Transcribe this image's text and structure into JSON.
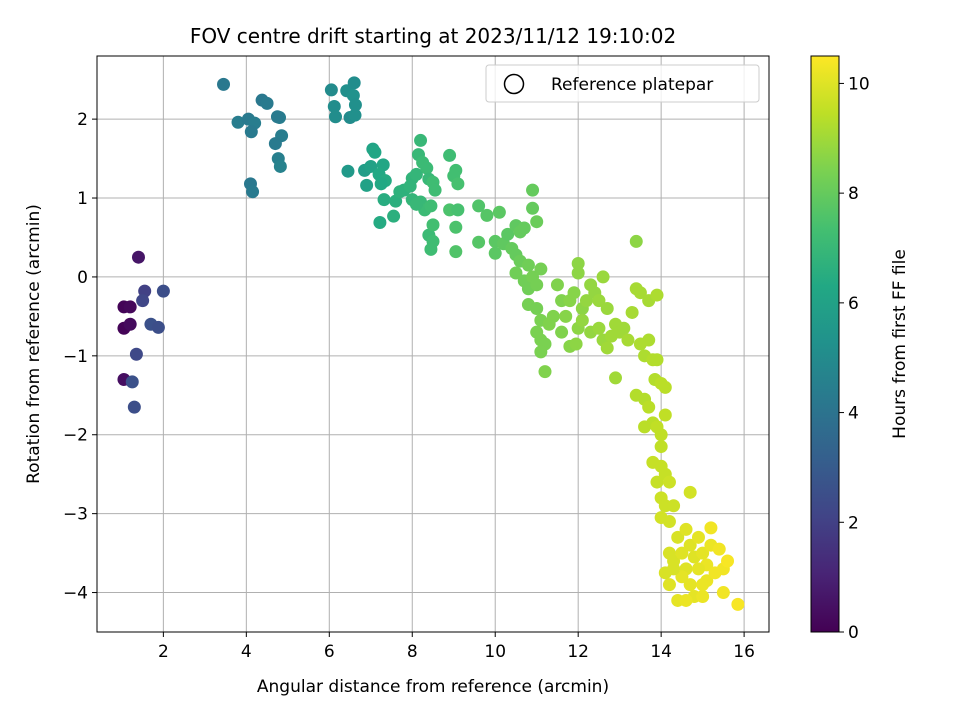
{
  "chart_data": {
    "type": "scatter",
    "title": "FOV centre drift starting at 2023/11/12 19:10:02",
    "xlabel": "Angular distance from reference (arcmin)",
    "ylabel": "Rotation from reference (arcmin)",
    "xlim": [
      0.4,
      16.6
    ],
    "ylim": [
      -4.5,
      2.8
    ],
    "xticks": [
      2,
      4,
      6,
      8,
      10,
      12,
      14,
      16
    ],
    "yticks": [
      -4,
      -3,
      -2,
      -1,
      0,
      1,
      2
    ],
    "grid": true,
    "legend": {
      "position": "upper right",
      "entries": [
        "Reference platepar"
      ]
    },
    "colorbar": {
      "label": "Hours from first FF file",
      "range": [
        0,
        10.5
      ],
      "ticks": [
        0,
        2,
        4,
        6,
        8,
        10
      ],
      "colormap": "viridis"
    },
    "points": [
      [
        1.05,
        -0.38,
        0.1
      ],
      [
        1.2,
        -0.38,
        0.2
      ],
      [
        1.05,
        -0.65,
        0.1
      ],
      [
        1.2,
        -0.6,
        0.3
      ],
      [
        1.05,
        -1.3,
        0.4
      ],
      [
        1.4,
        0.25,
        0.6
      ],
      [
        1.55,
        -0.18,
        2.0
      ],
      [
        1.5,
        -0.3,
        2.2
      ],
      [
        2.0,
        -0.18,
        2.5
      ],
      [
        1.7,
        -0.6,
        2.6
      ],
      [
        1.88,
        -0.64,
        2.5
      ],
      [
        1.35,
        -0.98,
        2.3
      ],
      [
        1.25,
        -1.33,
        2.6
      ],
      [
        1.3,
        -1.65,
        2.5
      ],
      [
        3.45,
        2.44,
        4.2
      ],
      [
        3.8,
        1.96,
        4.4
      ],
      [
        4.05,
        2.0,
        4.3
      ],
      [
        4.2,
        1.95,
        4.4
      ],
      [
        4.12,
        1.84,
        4.3
      ],
      [
        4.38,
        2.24,
        4.2
      ],
      [
        4.5,
        2.2,
        4.3
      ],
      [
        4.1,
        1.18,
        4.2
      ],
      [
        4.15,
        1.08,
        4.3
      ],
      [
        4.8,
        2.02,
        4.4
      ],
      [
        4.75,
        2.03,
        4.3
      ],
      [
        4.85,
        1.79,
        4.4
      ],
      [
        4.7,
        1.69,
        4.3
      ],
      [
        4.77,
        1.5,
        4.5
      ],
      [
        4.82,
        1.4,
        4.6
      ],
      [
        6.05,
        2.37,
        5.0
      ],
      [
        6.12,
        2.16,
        5.1
      ],
      [
        6.15,
        2.03,
        5.1
      ],
      [
        6.42,
        2.36,
        5.2
      ],
      [
        6.58,
        2.3,
        5.3
      ],
      [
        6.6,
        2.46,
        5.1
      ],
      [
        6.63,
        2.18,
        5.2
      ],
      [
        6.5,
        2.02,
        5.0
      ],
      [
        6.62,
        2.05,
        5.2
      ],
      [
        6.45,
        1.34,
        5.6
      ],
      [
        6.85,
        1.35,
        5.8
      ],
      [
        7.0,
        1.4,
        6.0
      ],
      [
        7.05,
        1.62,
        6.1
      ],
      [
        7.1,
        1.58,
        6.2
      ],
      [
        7.3,
        1.42,
        6.2
      ],
      [
        6.9,
        1.16,
        6.0
      ],
      [
        7.2,
        1.3,
        6.3
      ],
      [
        7.35,
        1.22,
        6.4
      ],
      [
        7.25,
        1.18,
        6.3
      ],
      [
        7.32,
        0.98,
        6.5
      ],
      [
        7.22,
        0.69,
        6.4
      ],
      [
        7.6,
        0.96,
        6.6
      ],
      [
        7.55,
        0.77,
        6.6
      ],
      [
        7.7,
        1.08,
        6.7
      ],
      [
        7.8,
        1.1,
        6.7
      ],
      [
        7.95,
        1.15,
        6.8
      ],
      [
        8.0,
        1.25,
        6.8
      ],
      [
        8.1,
        1.3,
        6.9
      ],
      [
        8.2,
        1.73,
        7.0
      ],
      [
        8.15,
        1.55,
        7.0
      ],
      [
        8.25,
        1.45,
        7.1
      ],
      [
        8.35,
        1.38,
        7.1
      ],
      [
        8.4,
        1.24,
        7.0
      ],
      [
        8.5,
        1.2,
        7.2
      ],
      [
        8.55,
        1.1,
        7.2
      ],
      [
        8.0,
        0.98,
        6.9
      ],
      [
        8.2,
        0.95,
        7.0
      ],
      [
        8.3,
        0.85,
        7.1
      ],
      [
        8.45,
        0.9,
        7.2
      ],
      [
        8.1,
        0.92,
        7.0
      ],
      [
        8.4,
        0.53,
        7.1
      ],
      [
        8.5,
        0.45,
        7.2
      ],
      [
        8.45,
        0.35,
        7.2
      ],
      [
        8.5,
        0.66,
        7.3
      ],
      [
        8.9,
        1.54,
        7.2
      ],
      [
        9.05,
        1.35,
        7.3
      ],
      [
        9.0,
        1.28,
        7.3
      ],
      [
        9.1,
        1.18,
        7.4
      ],
      [
        8.9,
        0.85,
        7.5
      ],
      [
        9.1,
        0.85,
        7.4
      ],
      [
        9.05,
        0.63,
        7.5
      ],
      [
        9.05,
        0.32,
        7.6
      ],
      [
        9.6,
        0.9,
        7.6
      ],
      [
        9.6,
        0.44,
        7.7
      ],
      [
        9.8,
        0.78,
        7.7
      ],
      [
        10.1,
        0.82,
        7.8
      ],
      [
        10.0,
        0.3,
        7.8
      ],
      [
        10.0,
        0.45,
        7.8
      ],
      [
        10.2,
        0.42,
        7.9
      ],
      [
        10.4,
        0.36,
        8.0
      ],
      [
        10.3,
        0.54,
        7.8
      ],
      [
        10.5,
        0.65,
        7.9
      ],
      [
        10.6,
        0.57,
        8.0
      ],
      [
        10.5,
        0.28,
        8.0
      ],
      [
        10.7,
        0.62,
        8.0
      ],
      [
        10.9,
        1.1,
        8.0
      ],
      [
        10.9,
        0.87,
        8.0
      ],
      [
        11.0,
        0.7,
        8.1
      ],
      [
        10.6,
        0.2,
        8.1
      ],
      [
        10.8,
        0.15,
        8.2
      ],
      [
        10.5,
        0.05,
        8.2
      ],
      [
        10.7,
        -0.05,
        8.2
      ],
      [
        10.8,
        -0.15,
        8.2
      ],
      [
        10.9,
        0.0,
        8.3
      ],
      [
        11.0,
        -0.1,
        8.3
      ],
      [
        11.1,
        0.1,
        8.3
      ],
      [
        10.8,
        -0.35,
        8.3
      ],
      [
        11.0,
        -0.4,
        8.3
      ],
      [
        11.1,
        -0.55,
        8.4
      ],
      [
        11.0,
        -0.7,
        8.4
      ],
      [
        11.1,
        -0.8,
        8.4
      ],
      [
        11.2,
        -0.85,
        8.4
      ],
      [
        11.1,
        -0.95,
        8.4
      ],
      [
        11.3,
        -0.6,
        8.5
      ],
      [
        11.4,
        -0.5,
        8.5
      ],
      [
        11.5,
        -0.1,
        8.5
      ],
      [
        11.6,
        -0.3,
        8.5
      ],
      [
        11.2,
        -1.2,
        8.5
      ],
      [
        11.6,
        -0.7,
        8.5
      ],
      [
        11.7,
        -0.5,
        8.6
      ],
      [
        11.8,
        -0.3,
        8.6
      ],
      [
        11.9,
        -0.2,
        8.6
      ],
      [
        12.0,
        0.17,
        8.7
      ],
      [
        12.0,
        0.05,
        8.7
      ],
      [
        12.1,
        -0.4,
        8.7
      ],
      [
        11.8,
        -0.88,
        8.6
      ],
      [
        11.95,
        -0.85,
        8.7
      ],
      [
        12.0,
        -0.65,
        8.7
      ],
      [
        12.1,
        -0.55,
        8.8
      ],
      [
        12.2,
        -0.3,
        8.8
      ],
      [
        12.3,
        -0.1,
        8.8
      ],
      [
        12.4,
        -0.2,
        8.8
      ],
      [
        12.5,
        -0.3,
        8.9
      ],
      [
        12.6,
        0.0,
        8.9
      ],
      [
        12.7,
        -0.4,
        8.9
      ],
      [
        12.3,
        -0.7,
        8.8
      ],
      [
        12.5,
        -0.65,
        8.9
      ],
      [
        12.6,
        -0.8,
        8.9
      ],
      [
        12.7,
        -0.9,
        9.0
      ],
      [
        12.8,
        -0.75,
        9.0
      ],
      [
        12.9,
        -0.6,
        9.0
      ],
      [
        13.0,
        -0.7,
        9.0
      ],
      [
        13.1,
        -0.65,
        9.0
      ],
      [
        13.2,
        -0.8,
        9.1
      ],
      [
        13.3,
        -0.45,
        9.1
      ],
      [
        12.9,
        -1.28,
        9.0
      ],
      [
        13.4,
        0.45,
        8.7
      ],
      [
        13.4,
        -0.15,
        9.1
      ],
      [
        13.5,
        -0.2,
        9.1
      ],
      [
        13.7,
        -0.3,
        9.1
      ],
      [
        13.9,
        -0.23,
        9.2
      ],
      [
        13.5,
        -0.85,
        9.2
      ],
      [
        13.6,
        -1.0,
        9.2
      ],
      [
        13.7,
        -0.8,
        9.2
      ],
      [
        13.8,
        -1.05,
        9.3
      ],
      [
        13.9,
        -1.05,
        9.3
      ],
      [
        13.85,
        -1.3,
        9.3
      ],
      [
        14.0,
        -1.35,
        9.4
      ],
      [
        14.1,
        -1.4,
        9.4
      ],
      [
        13.4,
        -1.5,
        9.3
      ],
      [
        13.6,
        -1.55,
        9.3
      ],
      [
        13.7,
        -1.65,
        9.4
      ],
      [
        13.8,
        -1.85,
        9.4
      ],
      [
        13.6,
        -1.9,
        9.4
      ],
      [
        13.9,
        -1.9,
        9.5
      ],
      [
        14.0,
        -2.0,
        9.5
      ],
      [
        14.1,
        -1.75,
        9.5
      ],
      [
        14.0,
        -2.15,
        9.5
      ],
      [
        13.8,
        -2.35,
        9.6
      ],
      [
        14.0,
        -2.4,
        9.6
      ],
      [
        14.1,
        -2.5,
        9.6
      ],
      [
        13.9,
        -2.6,
        9.6
      ],
      [
        14.2,
        -2.6,
        9.7
      ],
      [
        14.0,
        -2.8,
        9.7
      ],
      [
        14.1,
        -2.9,
        9.7
      ],
      [
        14.3,
        -2.9,
        9.7
      ],
      [
        14.7,
        -2.73,
        9.8
      ],
      [
        14.0,
        -3.05,
        9.8
      ],
      [
        14.2,
        -3.1,
        9.8
      ],
      [
        14.4,
        -3.3,
        9.9
      ],
      [
        14.2,
        -3.5,
        9.9
      ],
      [
        14.1,
        -3.75,
        9.9
      ],
      [
        14.3,
        -3.6,
        9.9
      ],
      [
        14.6,
        -3.2,
        10.0
      ],
      [
        14.7,
        -3.4,
        10.0
      ],
      [
        14.8,
        -3.55,
        10.0
      ],
      [
        14.6,
        -3.7,
        10.0
      ],
      [
        14.7,
        -3.9,
        10.1
      ],
      [
        14.8,
        -4.05,
        10.1
      ],
      [
        14.9,
        -3.3,
        10.1
      ],
      [
        15.0,
        -3.5,
        10.1
      ],
      [
        15.1,
        -3.65,
        10.2
      ],
      [
        15.2,
        -3.4,
        10.2
      ],
      [
        15.1,
        -3.85,
        10.2
      ],
      [
        15.0,
        -4.05,
        10.2
      ],
      [
        15.2,
        -3.18,
        10.3
      ],
      [
        15.4,
        -3.45,
        10.3
      ],
      [
        15.5,
        -3.7,
        10.3
      ],
      [
        15.5,
        -4.0,
        10.3
      ],
      [
        15.6,
        -3.6,
        10.4
      ],
      [
        14.2,
        -3.9,
        10.0
      ],
      [
        14.4,
        -4.1,
        10.1
      ],
      [
        14.6,
        -4.1,
        10.2
      ],
      [
        14.5,
        -3.8,
        10.1
      ],
      [
        15.85,
        -4.15,
        10.4
      ],
      [
        14.3,
        -3.7,
        9.9
      ],
      [
        14.5,
        -3.5,
        10.0
      ],
      [
        14.9,
        -3.7,
        10.1
      ],
      [
        15.0,
        -3.9,
        10.2
      ],
      [
        15.3,
        -3.75,
        10.3
      ]
    ]
  }
}
